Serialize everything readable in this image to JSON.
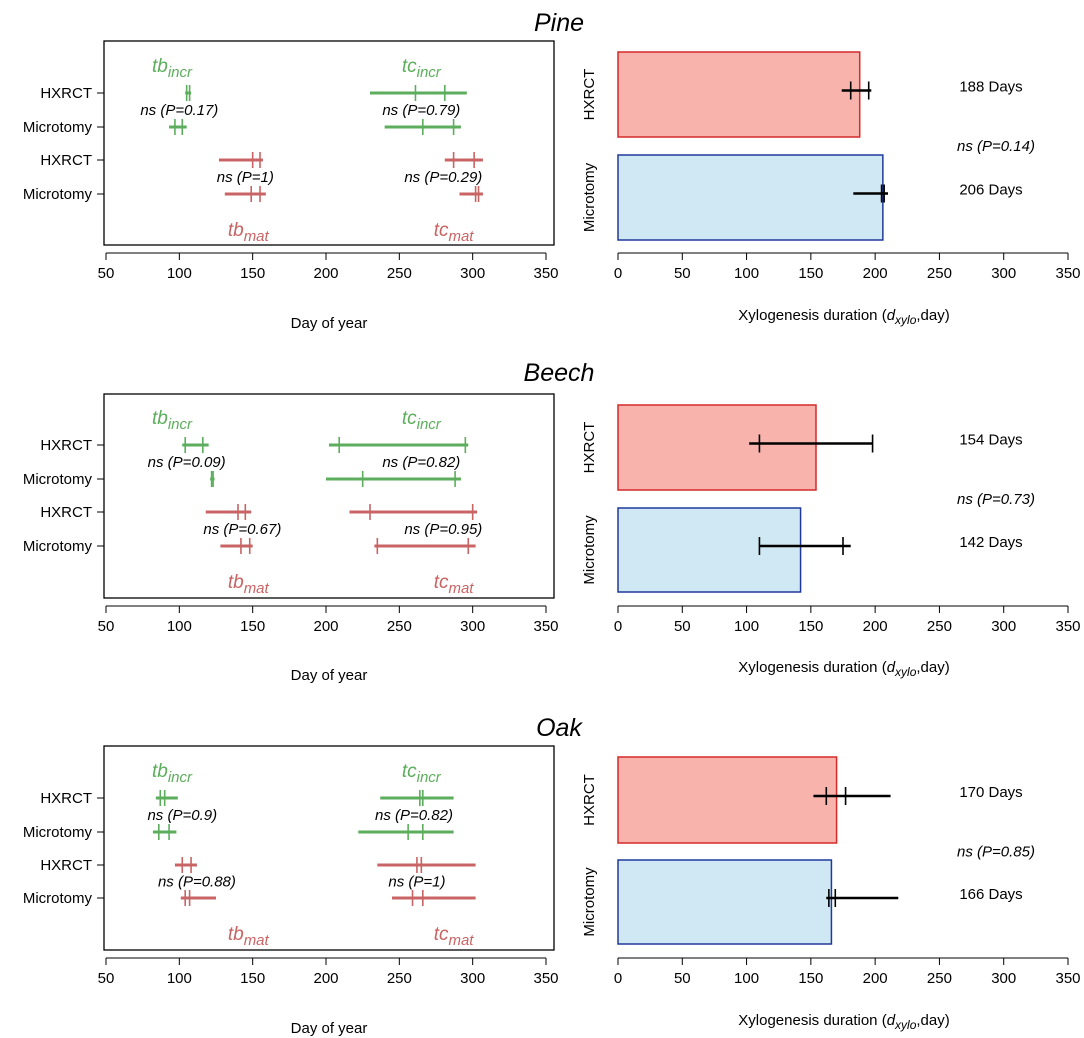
{
  "colors": {
    "incr": "#5cae5c",
    "mat": "#c96464",
    "bar_hxrct_fill": "#f8b3ad",
    "bar_hxrct_edge": "#d42a2a",
    "bar_micro_fill": "#cfe8f3",
    "bar_micro_edge": "#1f3a9a"
  },
  "common": {
    "row_labels": [
      "HXRCT",
      "Microtomy",
      "HXRCT",
      "Microtomy"
    ],
    "bar_labels": [
      "HXRCT",
      "Microtomy"
    ],
    "day_axis_ticks": [
      50,
      100,
      150,
      200,
      250,
      300,
      350
    ],
    "dur_axis_ticks": [
      0,
      50,
      100,
      150,
      200,
      250,
      300,
      350
    ],
    "day_xlabel": "Day of year",
    "dur_xlabel_pre": "Xylogenesis duration (",
    "dur_xlabel_d": "d",
    "dur_xlabel_sub": "xylo",
    "dur_xlabel_post": ",day)",
    "tb": "tb",
    "tc": "tc",
    "incr": "incr",
    "mat": "mat"
  },
  "chart_data": [
    {
      "type": "interval",
      "title": "Pine",
      "xlabel": "Day of year",
      "xlim": [
        50,
        350
      ],
      "rows": [
        {
          "label": "HXRCT",
          "kind": "incr",
          "tb": {
            "range": [
              104,
              108
            ],
            "ticks": [
              105,
              107
            ]
          },
          "tc": {
            "range": [
              230,
              296
            ],
            "ticks": [
              261,
              281
            ]
          }
        },
        {
          "label": "Microtomy",
          "kind": "incr",
          "tb": {
            "range": [
              93,
              105
            ],
            "ticks": [
              97,
              102
            ]
          },
          "tc": {
            "range": [
              240,
              292
            ],
            "ticks": [
              266,
              287
            ]
          }
        },
        {
          "label": "HXRCT",
          "kind": "mat",
          "tb": {
            "range": [
              127,
              157
            ],
            "ticks": [
              150,
              155
            ]
          },
          "tc": {
            "range": [
              281,
              307
            ],
            "ticks": [
              287,
              301
            ]
          }
        },
        {
          "label": "Microtomy",
          "kind": "mat",
          "tb": {
            "range": [
              131,
              159
            ],
            "ticks": [
              149,
              155
            ]
          },
          "tc": {
            "range": [
              291,
              307
            ],
            "ticks": [
              302,
              304
            ]
          }
        }
      ],
      "annotations": {
        "tb_incr": "ns (P=0.17)",
        "tc_incr": "ns (P=0.79)",
        "tb_mat": "ns (P=1)",
        "tc_mat": "ns (P=0.29)"
      }
    },
    {
      "type": "bar",
      "title": "Pine",
      "xlabel": "Xylogenesis duration (dxylo,day)",
      "xlim": [
        0,
        350
      ],
      "categories": [
        "HXRCT",
        "Microtomy"
      ],
      "values": [
        188,
        206
      ],
      "errors": [
        {
          "range": [
            174,
            197
          ],
          "ticks": [
            181,
            195
          ]
        },
        {
          "range": [
            183,
            210
          ],
          "ticks": [
            205,
            207
          ]
        }
      ],
      "value_labels": [
        "188 Days",
        "206 Days"
      ],
      "annotation": "ns (P=0.14)"
    },
    {
      "type": "interval",
      "title": "Beech",
      "xlabel": "Day of year",
      "xlim": [
        50,
        350
      ],
      "rows": [
        {
          "label": "HXRCT",
          "kind": "incr",
          "tb": {
            "range": [
              102,
              120
            ],
            "ticks": [
              104,
              116
            ]
          },
          "tc": {
            "range": [
              202,
              297
            ],
            "ticks": [
              209,
              295
            ]
          }
        },
        {
          "label": "Microtomy",
          "kind": "incr",
          "tb": {
            "range": [
              121,
              124
            ],
            "ticks": [
              122,
              123
            ]
          },
          "tc": {
            "range": [
              200,
              292
            ],
            "ticks": [
              225,
              288
            ]
          }
        },
        {
          "label": "HXRCT",
          "kind": "mat",
          "tb": {
            "range": [
              118,
              149
            ],
            "ticks": [
              140,
              145
            ]
          },
          "tc": {
            "range": [
              216,
              303
            ],
            "ticks": [
              230,
              300
            ]
          }
        },
        {
          "label": "Microtomy",
          "kind": "mat",
          "tb": {
            "range": [
              128,
              150
            ],
            "ticks": [
              142,
              148
            ]
          },
          "tc": {
            "range": [
              233,
              302
            ],
            "ticks": [
              235,
              297
            ]
          }
        }
      ],
      "annotations": {
        "tb_incr": "ns (P=0.09)",
        "tc_incr": "ns (P=0.82)",
        "tb_mat": "ns (P=0.67)",
        "tc_mat": "ns (P=0.95)"
      }
    },
    {
      "type": "bar",
      "title": "Beech",
      "xlabel": "Xylogenesis duration (dxylo,day)",
      "xlim": [
        0,
        350
      ],
      "categories": [
        "HXRCT",
        "Microtomy"
      ],
      "values": [
        154,
        142
      ],
      "errors": [
        {
          "range": [
            102,
            198
          ],
          "ticks": [
            110,
            198
          ]
        },
        {
          "range": [
            110,
            181
          ],
          "ticks": [
            110,
            175
          ]
        }
      ],
      "value_labels": [
        "154 Days",
        "142 Days"
      ],
      "annotation": "ns (P=0.73)"
    },
    {
      "type": "interval",
      "title": "Oak",
      "xlabel": "Day of year",
      "xlim": [
        50,
        350
      ],
      "rows": [
        {
          "label": "HXRCT",
          "kind": "incr",
          "tb": {
            "range": [
              84,
              99
            ],
            "ticks": [
              87,
              90
            ]
          },
          "tc": {
            "range": [
              237,
              287
            ],
            "ticks": [
              264,
              266
            ]
          }
        },
        {
          "label": "Microtomy",
          "kind": "incr",
          "tb": {
            "range": [
              82,
              98
            ],
            "ticks": [
              86,
              93
            ]
          },
          "tc": {
            "range": [
              222,
              287
            ],
            "ticks": [
              256,
              266
            ]
          }
        },
        {
          "label": "HXRCT",
          "kind": "mat",
          "tb": {
            "range": [
              97,
              112
            ],
            "ticks": [
              102,
              108
            ]
          },
          "tc": {
            "range": [
              235,
              302
            ],
            "ticks": [
              262,
              265
            ]
          }
        },
        {
          "label": "Microtomy",
          "kind": "mat",
          "tb": {
            "range": [
              101,
              125
            ],
            "ticks": [
              104,
              107
            ]
          },
          "tc": {
            "range": [
              245,
              302
            ],
            "ticks": [
              259,
              266
            ]
          }
        }
      ],
      "annotations": {
        "tb_incr": "ns (P=0.9)",
        "tc_incr": "ns (P=0.82)",
        "tb_mat": "ns (P=0.88)",
        "tc_mat": "ns (P=1)"
      }
    },
    {
      "type": "bar",
      "title": "Oak",
      "xlabel": "Xylogenesis duration (dxylo,day)",
      "xlim": [
        0,
        350
      ],
      "categories": [
        "HXRCT",
        "Microtomy"
      ],
      "values": [
        170,
        166
      ],
      "errors": [
        {
          "range": [
            152,
            212
          ],
          "ticks": [
            162,
            177
          ]
        },
        {
          "range": [
            162,
            218
          ],
          "ticks": [
            164,
            169
          ]
        }
      ],
      "value_labels": [
        "170 Days",
        "166 Days"
      ],
      "annotation": "ns (P=0.85)"
    }
  ]
}
